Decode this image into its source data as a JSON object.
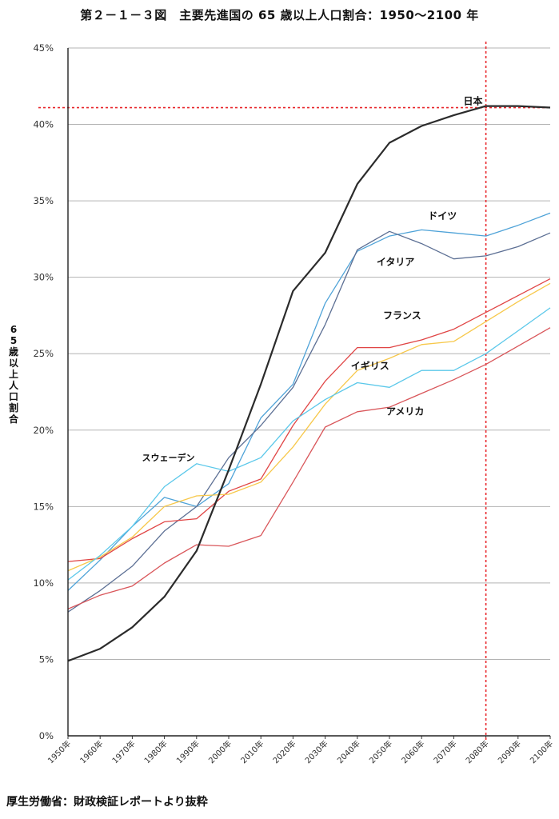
{
  "chart_data": {
    "type": "line",
    "title": "第２－１－３図　主要先進国の 65 歳以上人口割合：1950～2100 年",
    "ylabel": "65歳以上人口割合",
    "ylabel_chars": [
      "6",
      "5",
      "歳",
      "以",
      "上",
      "人",
      "口",
      "割",
      "合"
    ],
    "ylim": [
      0,
      45
    ],
    "yticks": [
      0,
      5,
      10,
      15,
      20,
      25,
      30,
      35,
      40,
      45
    ],
    "ytick_labels": [
      "0%",
      "5%",
      "10%",
      "15%",
      "20%",
      "25%",
      "30%",
      "35%",
      "40%",
      "45%"
    ],
    "x": [
      1950,
      1960,
      1970,
      1980,
      1990,
      2000,
      2010,
      2020,
      2030,
      2040,
      2050,
      2060,
      2070,
      2080,
      2090,
      2100
    ],
    "xtick_labels": [
      "1950年",
      "1960年",
      "1970年",
      "1980年",
      "1990年",
      "2000年",
      "2010年",
      "2020年",
      "2030年",
      "2040年",
      "2050年",
      "2060年",
      "2070年",
      "2080年",
      "2090年",
      "2100年"
    ],
    "grid": "horizontal",
    "reference_lines": {
      "x": 2080,
      "y": 41.1,
      "color": "#e8262b"
    },
    "series": [
      {
        "name": "日本",
        "color": "#2b2b2b",
        "width": 2.2,
        "values": [
          4.9,
          5.7,
          7.1,
          9.1,
          12.1,
          17.4,
          23.0,
          29.1,
          31.6,
          36.1,
          38.8,
          39.9,
          40.6,
          41.2,
          41.2,
          41.1
        ]
      },
      {
        "name": "ドイツ",
        "color": "#4fa3d8",
        "width": 1.3,
        "values": [
          9.5,
          11.5,
          13.7,
          15.6,
          15.0,
          16.5,
          20.8,
          23.0,
          28.3,
          31.7,
          32.7,
          33.1,
          32.9,
          32.7,
          33.4,
          34.2
        ]
      },
      {
        "name": "イタリア",
        "color": "#5c6f94",
        "width": 1.3,
        "values": [
          8.1,
          9.5,
          11.1,
          13.4,
          15.0,
          18.2,
          20.3,
          22.8,
          26.9,
          31.8,
          33.0,
          32.2,
          31.2,
          31.4,
          32.0,
          32.9
        ]
      },
      {
        "name": "フランス",
        "color": "#e04545",
        "width": 1.3,
        "values": [
          11.4,
          11.6,
          12.9,
          14.0,
          14.2,
          16.0,
          16.8,
          20.3,
          23.2,
          25.4,
          25.4,
          25.9,
          26.6,
          27.7,
          28.8,
          29.9
        ]
      },
      {
        "name": "イギリス",
        "color": "#f7c84a",
        "width": 1.3,
        "values": [
          10.8,
          11.7,
          13.0,
          15.0,
          15.7,
          15.8,
          16.6,
          18.9,
          21.7,
          23.9,
          24.7,
          25.6,
          25.8,
          27.1,
          28.4,
          29.6
        ]
      },
      {
        "name": "アメリカ",
        "color": "#d9565a",
        "width": 1.3,
        "values": [
          8.3,
          9.2,
          9.8,
          11.3,
          12.5,
          12.4,
          13.1,
          16.6,
          20.2,
          21.2,
          21.5,
          22.4,
          23.3,
          24.3,
          25.5,
          26.7
        ]
      },
      {
        "name": "スウェーデン",
        "color": "#5bc8ea",
        "width": 1.3,
        "values": [
          10.2,
          11.8,
          13.7,
          16.3,
          17.8,
          17.3,
          18.2,
          20.6,
          22.0,
          23.1,
          22.8,
          23.9,
          23.9,
          25.0,
          26.5,
          28.0
        ]
      }
    ],
    "annotations": [
      {
        "text": "日本",
        "x": 2073,
        "y": 41.3
      },
      {
        "text": "ドイツ",
        "x": 2062,
        "y": 33.8
      },
      {
        "text": "イタリア",
        "x": 2046,
        "y": 30.8
      },
      {
        "text": "フランス",
        "x": 2048,
        "y": 27.3
      },
      {
        "text": "イギリス",
        "x": 2038,
        "y": 24.0
      },
      {
        "text": "アメリカ",
        "x": 2049,
        "y": 21.0
      },
      {
        "text": "スウェーデン",
        "x": 1973,
        "y": 18.0
      }
    ]
  },
  "footer": "厚生労働省：財政検証レポートより抜粋"
}
